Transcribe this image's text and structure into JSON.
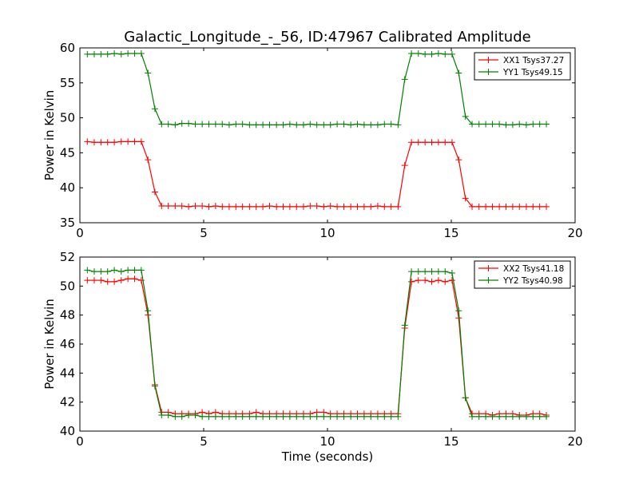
{
  "title": "Galactic_Longitude_-_56, ID:47967 Calibrated Amplitude",
  "xlabel": "Time (seconds)",
  "chart_data": [
    {
      "type": "line",
      "ylabel": "Power in Kelvin",
      "xlim": [
        0,
        20
      ],
      "ylim": [
        35,
        60
      ],
      "xticks": [
        0,
        5,
        10,
        15,
        20
      ],
      "yticks": [
        35,
        40,
        45,
        50,
        55,
        60
      ],
      "xtick_labels": [
        "0",
        "5",
        "10",
        "15",
        "20"
      ],
      "ytick_labels": [
        "35",
        "40",
        "45",
        "50",
        "55",
        "60"
      ],
      "grid": false,
      "legend_position": "top-right",
      "x": [
        0.3,
        0.58,
        0.85,
        1.12,
        1.39,
        1.67,
        1.94,
        2.21,
        2.48,
        2.75,
        3.03,
        3.3,
        3.57,
        3.85,
        4.12,
        4.39,
        4.66,
        4.94,
        5.21,
        5.48,
        5.75,
        6.03,
        6.3,
        6.57,
        6.85,
        7.12,
        7.39,
        7.66,
        7.94,
        8.21,
        8.48,
        8.75,
        9.03,
        9.3,
        9.57,
        9.85,
        10.12,
        10.39,
        10.66,
        10.94,
        11.21,
        11.48,
        11.75,
        12.03,
        12.3,
        12.57,
        12.85,
        13.12,
        13.39,
        13.67,
        13.94,
        14.21,
        14.48,
        14.75,
        15.03,
        15.3,
        15.57,
        15.84,
        16.12,
        16.39,
        16.66,
        16.94,
        17.21,
        17.48,
        17.75,
        18.03,
        18.3,
        18.57,
        18.84
      ],
      "series": [
        {
          "name": "XX1 Tsys37.27",
          "color": "#ff0000",
          "values": [
            46.6,
            46.5,
            46.5,
            46.5,
            46.5,
            46.6,
            46.6,
            46.6,
            46.6,
            44.0,
            39.4,
            37.4,
            37.4,
            37.4,
            37.4,
            37.3,
            37.4,
            37.4,
            37.3,
            37.4,
            37.3,
            37.3,
            37.3,
            37.3,
            37.3,
            37.3,
            37.3,
            37.4,
            37.3,
            37.3,
            37.3,
            37.3,
            37.3,
            37.4,
            37.4,
            37.3,
            37.4,
            37.3,
            37.3,
            37.3,
            37.3,
            37.3,
            37.3,
            37.4,
            37.3,
            37.3,
            37.3,
            43.2,
            46.5,
            46.5,
            46.5,
            46.5,
            46.5,
            46.5,
            46.5,
            44.0,
            38.5,
            37.3,
            37.3,
            37.3,
            37.3,
            37.3,
            37.3,
            37.3,
            37.3,
            37.3,
            37.3,
            37.3,
            37.3
          ]
        },
        {
          "name": "YY1 Tsys49.15",
          "color": "#008000",
          "values": [
            59.1,
            59.1,
            59.1,
            59.1,
            59.2,
            59.1,
            59.2,
            59.2,
            59.2,
            56.4,
            51.3,
            49.1,
            49.1,
            49.0,
            49.2,
            49.2,
            49.1,
            49.1,
            49.1,
            49.1,
            49.1,
            49.0,
            49.1,
            49.1,
            49.0,
            49.0,
            49.0,
            49.0,
            49.0,
            49.0,
            49.1,
            49.0,
            49.0,
            49.1,
            49.0,
            49.0,
            49.0,
            49.1,
            49.1,
            49.0,
            49.1,
            49.0,
            49.0,
            49.0,
            49.1,
            49.1,
            49.0,
            55.5,
            59.2,
            59.2,
            59.1,
            59.1,
            59.2,
            59.1,
            59.1,
            56.4,
            50.2,
            49.1,
            49.1,
            49.1,
            49.1,
            49.1,
            49.0,
            49.0,
            49.1,
            49.0,
            49.1,
            49.1,
            49.1
          ]
        }
      ]
    },
    {
      "type": "line",
      "ylabel": "Power in Kelvin",
      "xlabel": "Time (seconds)",
      "xlim": [
        0,
        20
      ],
      "ylim": [
        40,
        52
      ],
      "xticks": [
        0,
        5,
        10,
        15,
        20
      ],
      "yticks": [
        40,
        42,
        44,
        46,
        48,
        50,
        52
      ],
      "xtick_labels": [
        "0",
        "5",
        "10",
        "15",
        "20"
      ],
      "ytick_labels": [
        "40",
        "42",
        "44",
        "46",
        "48",
        "50",
        "52"
      ],
      "grid": false,
      "legend_position": "top-right",
      "x": [
        0.3,
        0.58,
        0.85,
        1.12,
        1.39,
        1.67,
        1.94,
        2.21,
        2.48,
        2.75,
        3.03,
        3.3,
        3.57,
        3.85,
        4.12,
        4.39,
        4.66,
        4.94,
        5.21,
        5.48,
        5.75,
        6.03,
        6.3,
        6.57,
        6.85,
        7.12,
        7.39,
        7.66,
        7.94,
        8.21,
        8.48,
        8.75,
        9.03,
        9.3,
        9.57,
        9.85,
        10.12,
        10.39,
        10.66,
        10.94,
        11.21,
        11.48,
        11.75,
        12.03,
        12.3,
        12.57,
        12.85,
        13.12,
        13.39,
        13.67,
        13.94,
        14.21,
        14.48,
        14.75,
        15.03,
        15.3,
        15.57,
        15.84,
        16.12,
        16.39,
        16.66,
        16.94,
        17.21,
        17.48,
        17.75,
        18.03,
        18.3,
        18.57,
        18.84
      ],
      "series": [
        {
          "name": "XX2 Tsys41.18",
          "color": "#ff0000",
          "values": [
            50.4,
            50.4,
            50.4,
            50.3,
            50.3,
            50.4,
            50.5,
            50.5,
            50.4,
            48.0,
            43.2,
            41.3,
            41.3,
            41.2,
            41.2,
            41.2,
            41.2,
            41.3,
            41.2,
            41.3,
            41.2,
            41.2,
            41.2,
            41.2,
            41.2,
            41.3,
            41.2,
            41.2,
            41.2,
            41.2,
            41.2,
            41.2,
            41.2,
            41.2,
            41.3,
            41.3,
            41.2,
            41.2,
            41.2,
            41.2,
            41.2,
            41.2,
            41.2,
            41.2,
            41.2,
            41.2,
            41.2,
            47.1,
            50.3,
            50.4,
            50.4,
            50.3,
            50.4,
            50.3,
            50.4,
            47.8,
            42.3,
            41.2,
            41.2,
            41.2,
            41.1,
            41.2,
            41.2,
            41.2,
            41.1,
            41.1,
            41.2,
            41.2,
            41.1
          ]
        },
        {
          "name": "YY2 Tsys40.98",
          "color": "#008000",
          "values": [
            51.1,
            51.0,
            51.0,
            51.0,
            51.1,
            51.0,
            51.1,
            51.1,
            51.1,
            48.3,
            43.1,
            41.1,
            41.1,
            41.0,
            41.0,
            41.1,
            41.1,
            41.0,
            41.0,
            41.0,
            41.0,
            41.0,
            41.0,
            41.0,
            41.0,
            41.0,
            41.0,
            41.0,
            41.0,
            41.0,
            41.0,
            41.0,
            41.0,
            41.0,
            41.0,
            41.0,
            41.0,
            41.0,
            41.0,
            41.0,
            41.0,
            41.0,
            41.0,
            41.0,
            41.0,
            41.0,
            41.0,
            47.3,
            51.0,
            51.0,
            51.0,
            51.0,
            51.0,
            51.0,
            50.9,
            48.3,
            42.3,
            41.0,
            41.0,
            41.0,
            41.0,
            41.0,
            41.0,
            41.0,
            41.0,
            41.0,
            41.0,
            41.0,
            41.0
          ]
        }
      ]
    }
  ]
}
